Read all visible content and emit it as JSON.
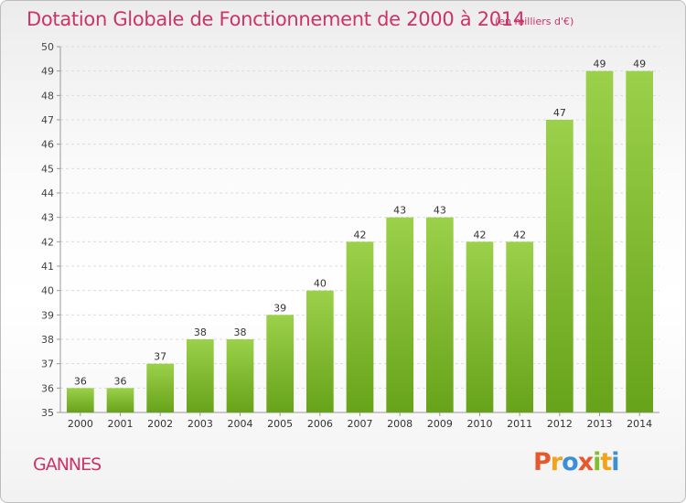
{
  "header": {
    "title": "Dotation Globale de Fonctionnement de 2000 à 2014",
    "unit": "(en milliers d'€)"
  },
  "footer": {
    "place": "GANNES",
    "brand": "Proxiti"
  },
  "colors": {
    "title": "#cc3366",
    "bar_top": "#9bd14a",
    "bar_bottom": "#67a31a",
    "brand_letters": [
      "#e8572a",
      "#f2a31c",
      "#3a8fd6",
      "#e8572a",
      "#7fbf2a",
      "#f2a31c",
      "#3a8fd6"
    ]
  },
  "chart_data": {
    "type": "bar",
    "title": "Dotation Globale de Fonctionnement de 2000 à 2014",
    "subtitle": "(en milliers d'€)",
    "categories": [
      "2000",
      "2001",
      "2002",
      "2003",
      "2004",
      "2005",
      "2006",
      "2007",
      "2008",
      "2009",
      "2010",
      "2011",
      "2012",
      "2013",
      "2014"
    ],
    "values": [
      36,
      36,
      37,
      38,
      38,
      39,
      40,
      42,
      43,
      43,
      42,
      42,
      47,
      49,
      49
    ],
    "ylim": [
      35,
      50
    ],
    "yticks": [
      35,
      36,
      37,
      38,
      39,
      40,
      41,
      42,
      43,
      44,
      45,
      46,
      47,
      48,
      49,
      50
    ],
    "grid": true,
    "xlabel": "",
    "ylabel": ""
  }
}
